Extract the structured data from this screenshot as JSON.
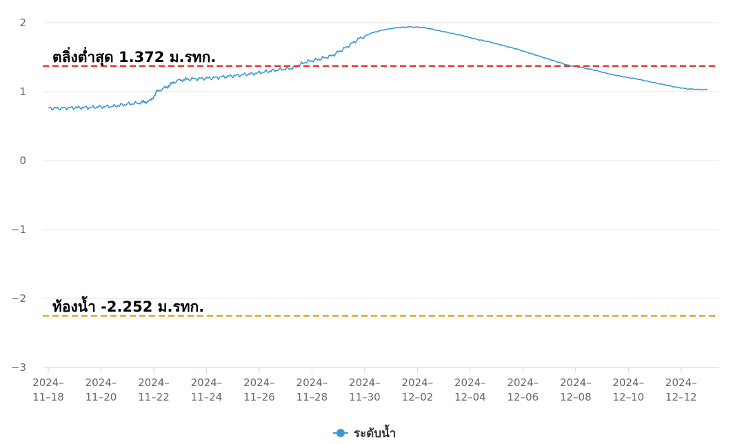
{
  "chart_data": {
    "type": "line",
    "xlabel": "",
    "ylabel": "",
    "ylim": [
      -3,
      2
    ],
    "yticks": [
      2,
      1,
      0,
      -1,
      -2,
      -3
    ],
    "x_range": [
      "2024-11-18",
      "2024-12-13"
    ],
    "x_tick_labels": [
      {
        "date": "2024-11-18",
        "line1": "2024–",
        "line2": "11–18"
      },
      {
        "date": "2024-11-20",
        "line1": "2024–",
        "line2": "11–20"
      },
      {
        "date": "2024-11-22",
        "line1": "2024–",
        "line2": "11–22"
      },
      {
        "date": "2024-11-24",
        "line1": "2024–",
        "line2": "11–24"
      },
      {
        "date": "2024-11-26",
        "line1": "2024–",
        "line2": "11–26"
      },
      {
        "date": "2024-11-28",
        "line1": "2024–",
        "line2": "11–28"
      },
      {
        "date": "2024-11-30",
        "line1": "2024–",
        "line2": "11–30"
      },
      {
        "date": "2024-12-02",
        "line1": "2024–",
        "line2": "12–02"
      },
      {
        "date": "2024-12-04",
        "line1": "2024–",
        "line2": "12–04"
      },
      {
        "date": "2024-12-06",
        "line1": "2024–",
        "line2": "12–06"
      },
      {
        "date": "2024-12-08",
        "line1": "2024–",
        "line2": "12–08"
      },
      {
        "date": "2024-12-10",
        "line1": "2024–",
        "line2": "12–10"
      },
      {
        "date": "2024-12-12",
        "line1": "2024–",
        "line2": "12–12"
      }
    ],
    "grid": true,
    "legend_position": "bottom-center",
    "series": [
      {
        "name": "ระดับน้ำ",
        "color": "#3b97d3",
        "points": [
          [
            "2024-11-18T00:00",
            0.76
          ],
          [
            "2024-11-18T12:00",
            0.76
          ],
          [
            "2024-11-19T00:00",
            0.77
          ],
          [
            "2024-11-19T12:00",
            0.77
          ],
          [
            "2024-11-20T00:00",
            0.78
          ],
          [
            "2024-11-20T12:00",
            0.79
          ],
          [
            "2024-11-21T00:00",
            0.82
          ],
          [
            "2024-11-21T12:00",
            0.84
          ],
          [
            "2024-11-21T21:00",
            0.87
          ],
          [
            "2024-11-22T03:00",
            1.0
          ],
          [
            "2024-11-22T12:00",
            1.07
          ],
          [
            "2024-11-22T21:00",
            1.16
          ],
          [
            "2024-11-23T06:00",
            1.18
          ],
          [
            "2024-11-23T18:00",
            1.19
          ],
          [
            "2024-11-24T06:00",
            1.2
          ],
          [
            "2024-11-24T18:00",
            1.22
          ],
          [
            "2024-11-25T06:00",
            1.24
          ],
          [
            "2024-11-25T18:00",
            1.26
          ],
          [
            "2024-11-26T06:00",
            1.29
          ],
          [
            "2024-11-26T18:00",
            1.32
          ],
          [
            "2024-11-27T06:00",
            1.34
          ],
          [
            "2024-11-27T18:00",
            1.43
          ],
          [
            "2024-11-28T06:00",
            1.47
          ],
          [
            "2024-11-28T18:00",
            1.52
          ],
          [
            "2024-11-29T06:00",
            1.63
          ],
          [
            "2024-11-29T18:00",
            1.76
          ],
          [
            "2024-11-30T06:00",
            1.85
          ],
          [
            "2024-11-30T18:00",
            1.9
          ],
          [
            "2024-12-01T06:00",
            1.93
          ],
          [
            "2024-12-01T18:00",
            1.94
          ],
          [
            "2024-12-02T06:00",
            1.93
          ],
          [
            "2024-12-02T18:00",
            1.89
          ],
          [
            "2024-12-03T06:00",
            1.85
          ],
          [
            "2024-12-03T18:00",
            1.81
          ],
          [
            "2024-12-04T06:00",
            1.76
          ],
          [
            "2024-12-04T18:00",
            1.72
          ],
          [
            "2024-12-05T06:00",
            1.67
          ],
          [
            "2024-12-05T18:00",
            1.62
          ],
          [
            "2024-12-06T06:00",
            1.56
          ],
          [
            "2024-12-06T18:00",
            1.5
          ],
          [
            "2024-12-07T06:00",
            1.44
          ],
          [
            "2024-12-07T18:00",
            1.38
          ],
          [
            "2024-12-08T06:00",
            1.35
          ],
          [
            "2024-12-08T18:00",
            1.31
          ],
          [
            "2024-12-09T06:00",
            1.26
          ],
          [
            "2024-12-09T18:00",
            1.22
          ],
          [
            "2024-12-10T06:00",
            1.19
          ],
          [
            "2024-12-10T18:00",
            1.15
          ],
          [
            "2024-12-11T06:00",
            1.11
          ],
          [
            "2024-12-11T18:00",
            1.07
          ],
          [
            "2024-12-12T06:00",
            1.04
          ],
          [
            "2024-12-12T18:00",
            1.03
          ],
          [
            "2024-12-13T00:00",
            1.03
          ]
        ]
      }
    ],
    "reference_lines": [
      {
        "label": "ตลิ่งต่ำสุด 1.372 ม.รทก.",
        "value": 1.372,
        "color": "#e53935",
        "style": "dashed"
      },
      {
        "label": "ท้องน้ำ -2.252 ม.รทก.",
        "value": -2.252,
        "color": "#f5a30f",
        "style": "dashed"
      }
    ]
  }
}
